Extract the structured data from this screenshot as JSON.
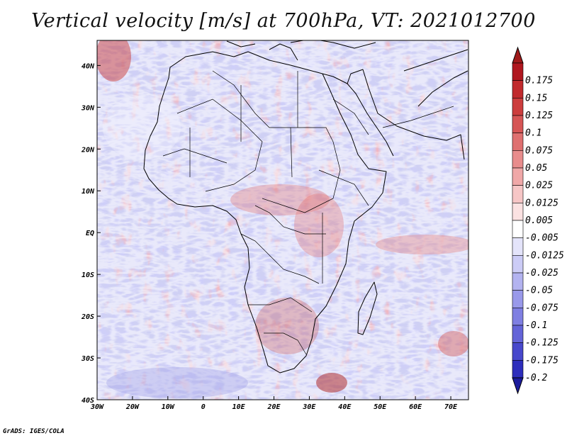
{
  "title": "Vertical velocity [m/s] at 700hPa, VT: 2021012700",
  "credit": "GrADS: IGES/COLA",
  "map": {
    "lon_range": [
      -30,
      75
    ],
    "lat_range": [
      -40,
      46
    ],
    "lon_ticks": [
      {
        "value": -30,
        "label": "30W"
      },
      {
        "value": -20,
        "label": "20W"
      },
      {
        "value": -10,
        "label": "10W"
      },
      {
        "value": 0,
        "label": "0"
      },
      {
        "value": 10,
        "label": "10E"
      },
      {
        "value": 20,
        "label": "20E"
      },
      {
        "value": 30,
        "label": "30E"
      },
      {
        "value": 40,
        "label": "40E"
      },
      {
        "value": 50,
        "label": "50E"
      },
      {
        "value": 60,
        "label": "60E"
      },
      {
        "value": 70,
        "label": "70E"
      }
    ],
    "lat_ticks": [
      {
        "value": 40,
        "label": "40N"
      },
      {
        "value": 30,
        "label": "30N"
      },
      {
        "value": 20,
        "label": "20N"
      },
      {
        "value": 10,
        "label": "10N"
      },
      {
        "value": 0,
        "label": "EQ"
      },
      {
        "value": -10,
        "label": "10S"
      },
      {
        "value": -20,
        "label": "20S"
      },
      {
        "value": -30,
        "label": "30S"
      },
      {
        "value": -40,
        "label": "40S"
      }
    ]
  },
  "colorbar": {
    "levels": [
      {
        "label": "0.175",
        "color": "#b0171f"
      },
      {
        "label": "0.15",
        "color": "#c12a2d"
      },
      {
        "label": "0.125",
        "color": "#cc3d3d"
      },
      {
        "label": "0.1",
        "color": "#d65555"
      },
      {
        "label": "0.075",
        "color": "#df7070"
      },
      {
        "label": "0.05",
        "color": "#e88c8c"
      },
      {
        "label": "0.025",
        "color": "#f0a8a8"
      },
      {
        "label": "0.0125",
        "color": "#f6c6c6"
      },
      {
        "label": "0.005",
        "color": "#fbe2e2"
      },
      {
        "label": "-0.005",
        "color": "#ffffff"
      },
      {
        "label": "-0.0125",
        "color": "#e4e4fa"
      },
      {
        "label": "-0.025",
        "color": "#ccccf6"
      },
      {
        "label": "-0.05",
        "color": "#b3b3f0"
      },
      {
        "label": "-0.075",
        "color": "#9999ea"
      },
      {
        "label": "-0.1",
        "color": "#7f7fe2"
      },
      {
        "label": "-0.125",
        "color": "#6464d8"
      },
      {
        "label": "-0.175",
        "color": "#4848cc"
      },
      {
        "label": "-0.2",
        "color": "#2e2ebc"
      }
    ],
    "top_color": "#a01a1a",
    "bottom_color": "#1c1c9c"
  }
}
